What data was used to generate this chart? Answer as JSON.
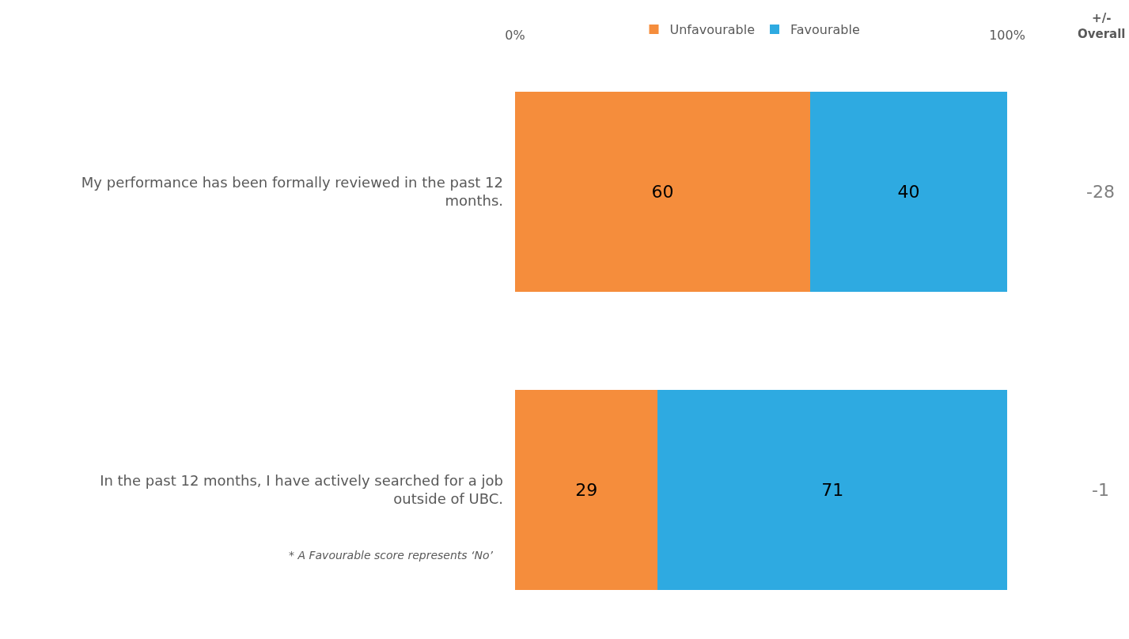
{
  "chart_data": {
    "type": "bar",
    "orientation": "horizontal",
    "stacked": true,
    "categories": [
      "My performance has been formally reviewed in the past 12 months.",
      "In the past 12 months, I have actively searched for a job outside of UBC."
    ],
    "series": [
      {
        "name": "Unfavourable",
        "color": "#f58d3c",
        "values": [
          60,
          29
        ]
      },
      {
        "name": "Favourable",
        "color": "#2eaae1",
        "values": [
          40,
          71
        ]
      }
    ],
    "xlim": [
      0,
      100
    ],
    "xticks": [
      {
        "value": 0,
        "label": "0%"
      },
      {
        "value": 100,
        "label": "100%"
      }
    ],
    "data_labels": true,
    "legend": "top",
    "annotations": [
      "+/-\nOverall",
      "-28",
      "-1",
      "* A Favourable score represents ‘No’"
    ]
  }
}
